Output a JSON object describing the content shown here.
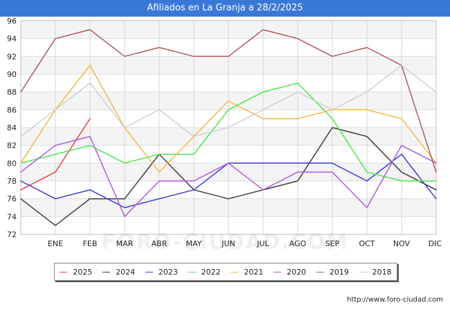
{
  "header": {
    "title": "Afiliados en La Granja a 28/2/2025"
  },
  "footer": {
    "url": "http://www.foro-ciudad.com"
  },
  "watermark": {
    "text": "FORO-CIUDAD.COM"
  },
  "chart_data": {
    "type": "line",
    "title": "Afiliados en La Granja a 28/2/2025",
    "xlabel": "",
    "ylabel": "",
    "categories": [
      "",
      "ENE",
      "FEB",
      "MAR",
      "ABR",
      "MAY",
      "JUN",
      "JUL",
      "AGO",
      "SEP",
      "OCT",
      "NOV",
      "DIC"
    ],
    "ylim": [
      72,
      96
    ],
    "yticks": [
      72,
      74,
      76,
      78,
      80,
      82,
      84,
      86,
      88,
      90,
      92,
      94,
      96
    ],
    "grid": true,
    "legend_position": "bottom",
    "series": [
      {
        "name": "2025",
        "color": "#e8434a",
        "values": [
          77,
          79,
          85,
          null,
          null,
          null,
          null,
          null,
          null,
          null,
          null,
          null,
          null
        ]
      },
      {
        "name": "2024",
        "color": "#3c3c3c",
        "values": [
          76,
          73,
          76,
          76,
          81,
          77,
          76,
          77,
          78,
          84,
          83,
          79,
          77
        ]
      },
      {
        "name": "2023",
        "color": "#3a3ae0",
        "values": [
          78,
          76,
          77,
          75,
          76,
          77,
          80,
          80,
          80,
          80,
          78,
          81,
          76
        ]
      },
      {
        "name": "2022",
        "color": "#4de84d",
        "values": [
          80,
          81,
          82,
          80,
          81,
          81,
          86,
          88,
          89,
          85,
          79,
          78,
          78
        ]
      },
      {
        "name": "2021",
        "color": "#f5b93d",
        "values": [
          80,
          86,
          91,
          84,
          79,
          83,
          87,
          85,
          85,
          86,
          86,
          85,
          80
        ]
      },
      {
        "name": "2020",
        "color": "#b05ae6",
        "values": [
          79,
          82,
          83,
          74,
          78,
          78,
          80,
          77,
          79,
          79,
          75,
          82,
          80
        ]
      },
      {
        "name": "2019",
        "color": "#b0585e",
        "values": [
          88,
          94,
          95,
          92,
          93,
          92,
          92,
          95,
          94,
          92,
          93,
          91,
          79
        ]
      },
      {
        "name": "2018",
        "color": "#cfcfcf",
        "values": [
          83,
          86,
          89,
          84,
          86,
          83,
          84,
          86,
          88,
          86,
          88,
          91,
          88
        ]
      }
    ]
  }
}
